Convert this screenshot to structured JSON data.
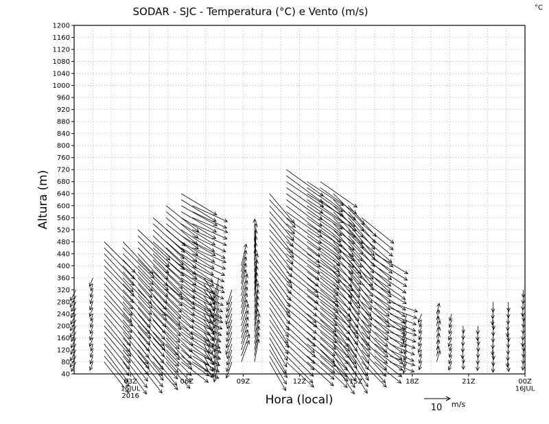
{
  "chart_data": {
    "type": "wind-barb-profile",
    "title": "SODAR - SJC - Temperatura (°C) e Vento (m/s)",
    "corner_unit": "°C",
    "xlabel": "Hora (local)",
    "ylabel": "Altura (m)",
    "ylim": [
      40,
      1200
    ],
    "ytick_step": 40,
    "yticks": [
      "40",
      "80",
      "120",
      "160",
      "200",
      "240",
      "280",
      "320",
      "360",
      "400",
      "440",
      "480",
      "520",
      "560",
      "600",
      "640",
      "680",
      "720",
      "760",
      "800",
      "840",
      "880",
      "920",
      "960",
      "1000",
      "1040",
      "1080",
      "1120",
      "1160",
      "1200"
    ],
    "xlim_hours": [
      0,
      24
    ],
    "xticks": [
      {
        "hour": 3,
        "label": "03Z",
        "line2": "15JUL",
        "line3": "2016"
      },
      {
        "hour": 6,
        "label": "06Z"
      },
      {
        "hour": 9,
        "label": "09Z"
      },
      {
        "hour": 12,
        "label": "12Z"
      },
      {
        "hour": 15,
        "label": "15Z"
      },
      {
        "hour": 18,
        "label": "18Z"
      },
      {
        "hour": 21,
        "label": "21Z"
      },
      {
        "hour": 24,
        "label": "00Z",
        "line2": "16JUL"
      }
    ],
    "grid": true,
    "legend": {
      "value": "10",
      "unit": "m/s",
      "placement": "bottom-right"
    },
    "wind_reference_speed": 10,
    "vector_note": "approximate arrow lengths/directions read from figure; u,v in m/s",
    "profiles": [
      {
        "hour": 0.1,
        "top": 320,
        "u": -2,
        "v": -4,
        "slope": 0.0
      },
      {
        "hour": 1.0,
        "top": 360,
        "u": -1,
        "v": -3,
        "slope": 0.0
      },
      {
        "hour": 1.6,
        "top": 480,
        "u": 9,
        "v": -12,
        "slope": 1.0
      },
      {
        "hour": 2.6,
        "top": 480,
        "u": 9,
        "v": -12,
        "slope": 1.0
      },
      {
        "hour": 3.4,
        "top": 520,
        "u": 9,
        "v": -12,
        "slope": 1.0
      },
      {
        "hour": 4.2,
        "top": 560,
        "u": 9,
        "v": -11,
        "slope": 1.0
      },
      {
        "hour": 4.9,
        "top": 600,
        "u": 9,
        "v": -10,
        "slope": 1.0
      },
      {
        "hour": 5.7,
        "top": 640,
        "u": 10,
        "v": -8,
        "slope": 1.0
      },
      {
        "hour": 6.3,
        "top": 600,
        "u": 10,
        "v": -6,
        "slope": 1.0
      },
      {
        "hour": 6.9,
        "top": 360,
        "u": 3,
        "v": -6,
        "slope": 0.6
      },
      {
        "hour": 7.7,
        "top": 360,
        "u": -2,
        "v": -8,
        "slope": 0.0
      },
      {
        "hour": 8.4,
        "top": 320,
        "u": -2,
        "v": -6,
        "slope": 0.0
      },
      {
        "hour": 8.9,
        "top": 400,
        "u": 3,
        "v": 8,
        "slope": -0.6
      },
      {
        "hour": 9.6,
        "top": 480,
        "u": 2,
        "v": 9,
        "slope": -0.6
      },
      {
        "hour": 10.4,
        "top": 640,
        "u": 6,
        "v": -11,
        "slope": 1.0
      },
      {
        "hour": 11.3,
        "top": 720,
        "u": 10,
        "v": -10,
        "slope": 1.0
      },
      {
        "hour": 12.4,
        "top": 680,
        "u": 10,
        "v": -9,
        "slope": 1.0
      },
      {
        "hour": 13.1,
        "top": 680,
        "u": 10,
        "v": -10,
        "slope": 1.0
      },
      {
        "hour": 13.8,
        "top": 640,
        "u": 8,
        "v": -12,
        "slope": 1.0
      },
      {
        "hour": 14.6,
        "top": 600,
        "u": 7,
        "v": -12,
        "slope": 1.0
      },
      {
        "hour": 15.3,
        "top": 560,
        "u": 9,
        "v": -10,
        "slope": 1.0
      },
      {
        "hour": 16.0,
        "top": 440,
        "u": 10,
        "v": -8,
        "slope": 1.0
      },
      {
        "hour": 16.8,
        "top": 280,
        "u": 9,
        "v": -4,
        "slope": 1.0
      },
      {
        "hour": 17.7,
        "top": 240,
        "u": -1,
        "v": -4,
        "slope": 0.0
      },
      {
        "hour": 18.5,
        "top": 240,
        "u": -1,
        "v": -3,
        "slope": 0.0
      },
      {
        "hour": 19.3,
        "top": 240,
        "u": 1,
        "v": 4,
        "slope": 0.0
      },
      {
        "hour": 20.1,
        "top": 240,
        "u": -1,
        "v": -3,
        "slope": 0.0
      },
      {
        "hour": 20.7,
        "top": 200,
        "u": 0,
        "v": -3,
        "slope": 0.0
      },
      {
        "hour": 21.5,
        "top": 200,
        "u": 0,
        "v": -3,
        "slope": 0.0
      },
      {
        "hour": 22.3,
        "top": 280,
        "u": 0,
        "v": -4,
        "slope": 0.0
      },
      {
        "hour": 23.1,
        "top": 280,
        "u": 0,
        "v": -4,
        "slope": 0.0
      },
      {
        "hour": 23.9,
        "top": 320,
        "u": 0,
        "v": -3,
        "slope": 0.0
      }
    ]
  }
}
